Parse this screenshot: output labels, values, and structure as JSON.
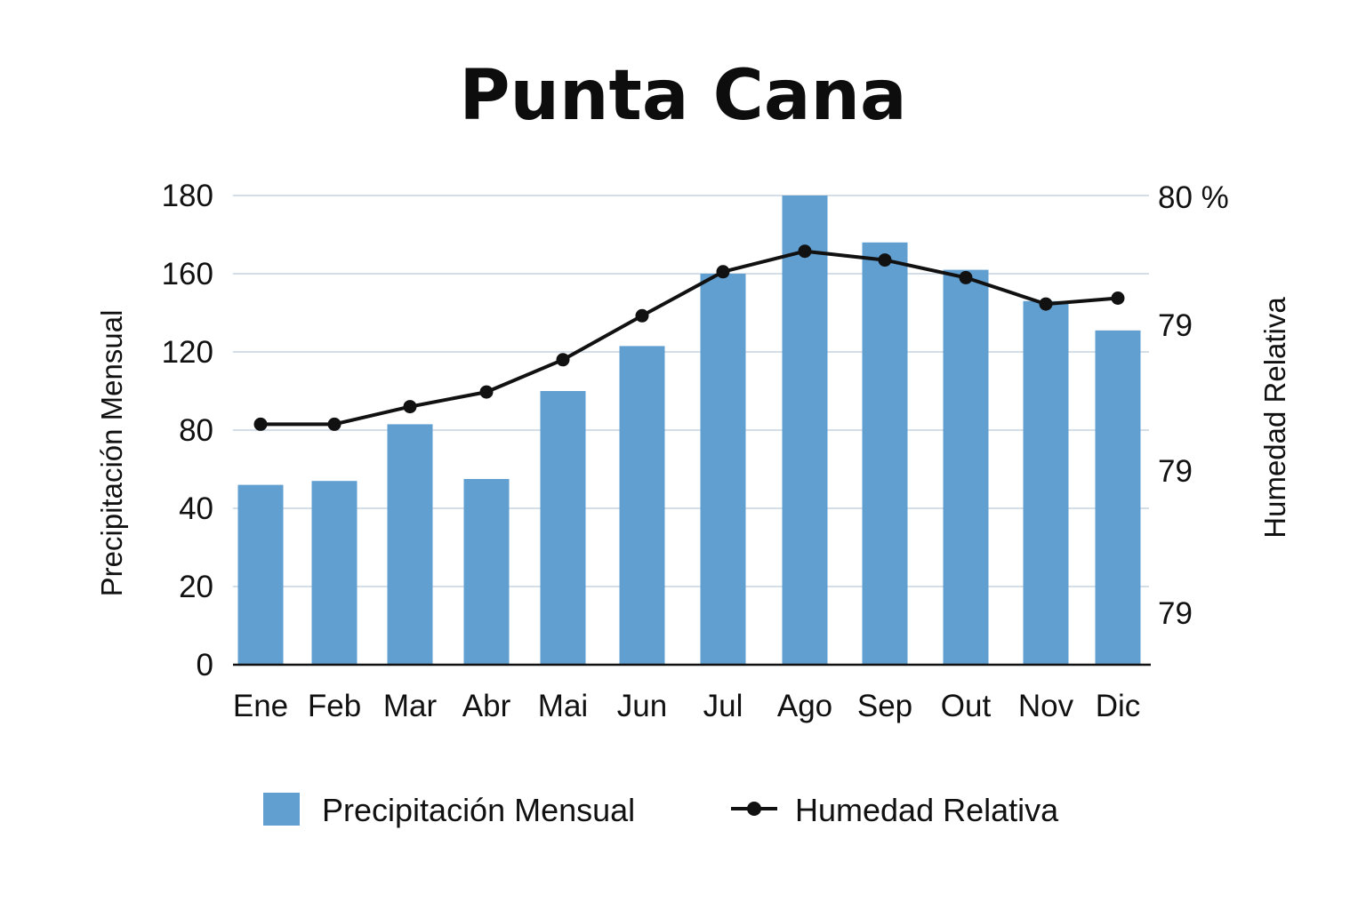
{
  "chart_data": {
    "type": "bar",
    "title": "Punta Cana",
    "categories": [
      "Ene",
      "Feb",
      "Mar",
      "Abr",
      "Mai",
      "Jun",
      "Jul",
      "Ago",
      "Sep",
      "Out",
      "Nov",
      "Dic"
    ],
    "series": [
      {
        "name": "Precipitación Mensual",
        "type": "bar",
        "axis": "left",
        "color": "#619fd1",
        "values": [
          52,
          54,
          83,
          55,
          100,
          123,
          160,
          180,
          168,
          161,
          146,
          131
        ]
      },
      {
        "name": "Humedad Relativa",
        "type": "line",
        "axis": "right",
        "color": "#111111",
        "values": [
          79.22,
          79.22,
          79.28,
          79.33,
          79.44,
          79.59,
          79.74,
          79.81,
          79.78,
          79.72,
          79.63,
          79.65
        ]
      }
    ],
    "ylabel_left": "Precipitación Mensual",
    "ylabel_right": "Humedad Relativa",
    "ylim_left": [
      0,
      180
    ],
    "yticks_left": [
      "0",
      "20",
      "40",
      "80",
      "120",
      "160",
      "180"
    ],
    "ylim_right": [
      78.4,
      80.0
    ],
    "yticks_right": [
      "79",
      "79",
      "79",
      "80 %"
    ],
    "grid": true,
    "legend": "bottom-center"
  }
}
